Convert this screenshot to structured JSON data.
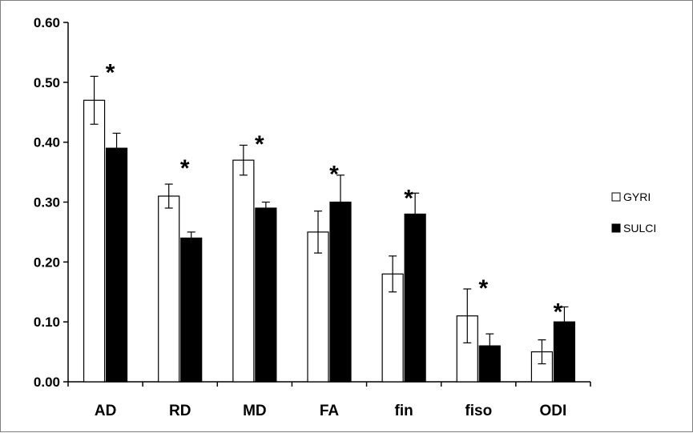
{
  "chart_data": {
    "type": "bar",
    "categories": [
      "AD",
      "RD",
      "MD",
      "FA",
      "fin",
      "fiso",
      "ODI"
    ],
    "series": [
      {
        "name": "GYRI",
        "fill": "#ffffff",
        "values": [
          0.47,
          0.31,
          0.37,
          0.25,
          0.18,
          0.11,
          0.05
        ],
        "error": [
          0.04,
          0.02,
          0.025,
          0.035,
          0.03,
          0.045,
          0.02
        ]
      },
      {
        "name": "SULCI",
        "fill": "#000000",
        "values": [
          0.39,
          0.24,
          0.29,
          0.3,
          0.28,
          0.06,
          0.1
        ],
        "error": [
          0.025,
          0.01,
          0.01,
          0.045,
          0.035,
          0.02,
          0.025
        ]
      }
    ],
    "yticks": [
      "0.00",
      "0.10",
      "0.20",
      "0.30",
      "0.40",
      "0.50",
      "0.60"
    ],
    "ylim": [
      0,
      0.6
    ],
    "annotations": [
      "*",
      "*",
      "*",
      "*",
      "*",
      "*",
      "*"
    ],
    "annotation_values": [
      0.53,
      0.37,
      0.41,
      0.36,
      0.32,
      0.17,
      0.13
    ],
    "legend_position": "right",
    "title": "",
    "xlabel": "",
    "ylabel": ""
  }
}
